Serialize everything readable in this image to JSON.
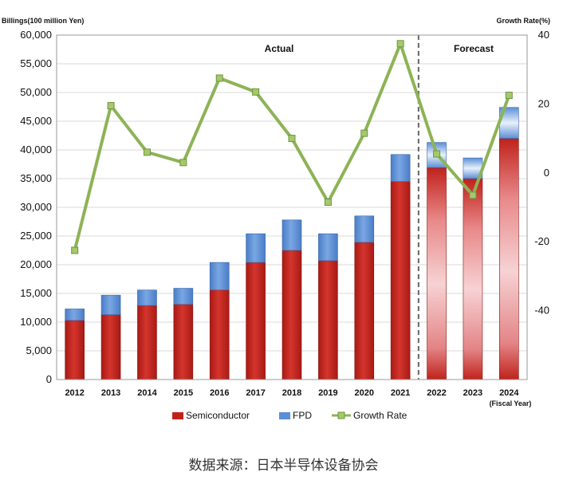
{
  "chart_data": {
    "type": "bar",
    "stacked": true,
    "left_axis_title": "Billings(100 million Yen)",
    "right_axis_title": "Growth Rate(%)",
    "xlabel": "(Fiscal Year)",
    "ylim": [
      0,
      60000
    ],
    "y_ticks": [
      "0",
      "5,000",
      "10,000",
      "15,000",
      "20,000",
      "25,000",
      "30,000",
      "35,000",
      "40,000",
      "45,000",
      "50,000",
      "55,000",
      "60,000"
    ],
    "y2lim": [
      -60,
      40
    ],
    "y2_ticks": [
      "40",
      "20",
      "0",
      "-20",
      "-40"
    ],
    "categories": [
      "2012",
      "2013",
      "2014",
      "2015",
      "2016",
      "2017",
      "2018",
      "2019",
      "2020",
      "2021",
      "2022",
      "2023",
      "2024"
    ],
    "series": [
      {
        "name": "Semiconductor",
        "type": "bar",
        "color": "#c0221b",
        "values": [
          10300,
          11300,
          12900,
          13100,
          15600,
          20400,
          22500,
          20700,
          23900,
          34500,
          36900,
          35000,
          42000
        ]
      },
      {
        "name": "FPD",
        "type": "bar",
        "color": "#5b8fd6",
        "values": [
          2000,
          3400,
          2700,
          2800,
          4800,
          5000,
          5300,
          4700,
          4600,
          4700,
          4400,
          3600,
          5400
        ]
      },
      {
        "name": "Growth Rate",
        "type": "line",
        "axis": "right",
        "color": "#8db356",
        "values": [
          -22.5,
          19.5,
          6,
          3,
          27.5,
          23.5,
          10,
          -8.5,
          11.5,
          37.5,
          5.5,
          -6.5,
          22.5
        ]
      }
    ],
    "forecast_from": "2022",
    "annotations": [
      "Actual",
      "Forecast"
    ],
    "grid": true,
    "legend_position": "bottom"
  },
  "source_note": "数据来源：日本半导体设备协会"
}
